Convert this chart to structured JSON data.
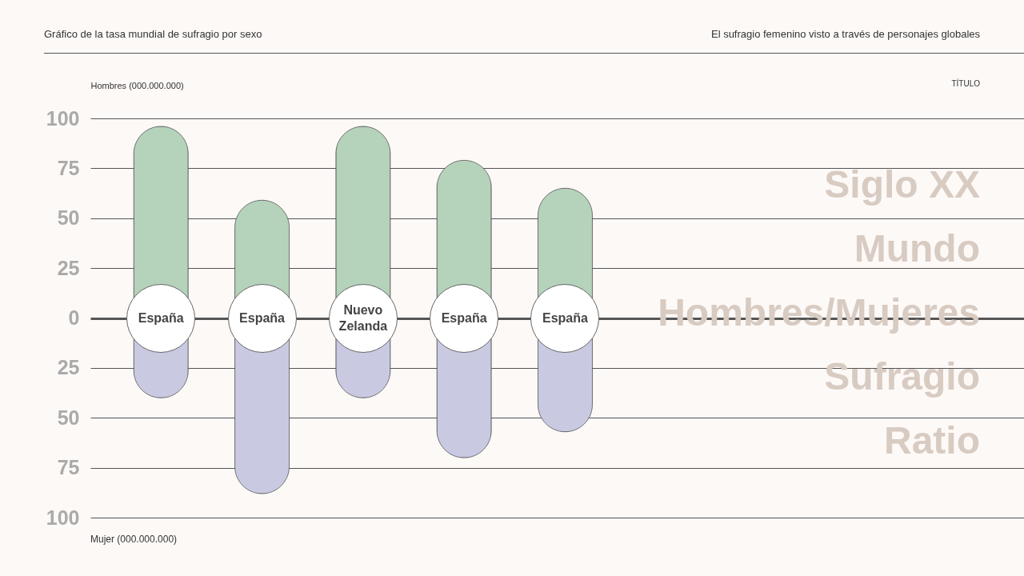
{
  "chart_data": {
    "type": "bar",
    "title": "Gráfico de la tasa mundial de sufragio por sexo",
    "subtitle": "El sufragio femenino visto a través de personajes globales",
    "ylabel": "Hombres (000.000.000)",
    "stacked": true,
    "categories": [
      "España",
      "España",
      "Nuevo Zelanda",
      "España",
      "España"
    ],
    "series": [
      {
        "color": "#b5d2bb",
        "values": [
          96,
          59,
          96,
          79,
          65
        ]
      },
      {
        "color": "#c9cae2",
        "values": [
          -40,
          -88,
          -40,
          -70,
          -57
        ]
      }
    ],
    "ylim": [
      -100,
      100
    ],
    "yticks": [
      {
        "value": -100,
        "label": "100"
      },
      {
        "value": -75,
        "label": "75"
      },
      {
        "value": -50,
        "label": "50"
      },
      {
        "value": -25,
        "label": "25"
      },
      0,
      25,
      50,
      75,
      100
    ],
    "grid": "y",
    "annotations": [
      "Mujer (000.000.000)",
      "TÍTULO",
      "Siglo XX",
      "Mundo",
      "Hombres/Mujeres",
      "Sufragio",
      "Ratio"
    ]
  }
}
